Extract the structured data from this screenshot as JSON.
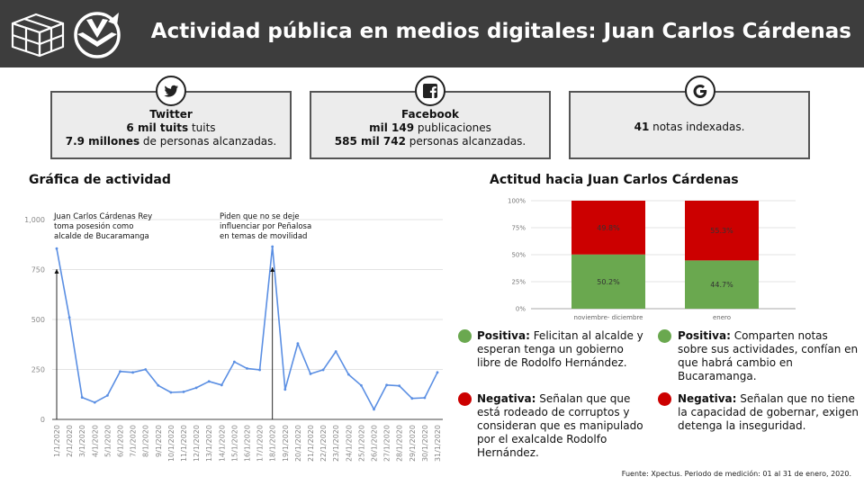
{
  "header": {
    "title": "Actividad pública en medios digitales: Juan Carlos Cárdenas"
  },
  "cards": {
    "twitter": {
      "icon": "twitter-icon",
      "name": "Twitter",
      "line1_bold": "6 mil tuits",
      "line1_rest": " tuits",
      "line2_bold": "7.9 millones",
      "line2_rest": " de personas alcanzadas."
    },
    "facebook": {
      "icon": "facebook-icon",
      "name": "Facebook",
      "line1_bold": "mil 149",
      "line1_rest": "  publicaciones",
      "line2_bold": "585 mil 742",
      "line2_rest": " personas alcanzadas."
    },
    "google": {
      "icon": "google-icon",
      "line1_bold": "41",
      "line1_rest": " notas indexadas."
    }
  },
  "activity": {
    "title": "Gráfica de actividad",
    "annotations": [
      {
        "x": "1/1/2020",
        "text": "Juan Carlos Cárdenas Rey toma posesión como alcalde de Bucaramanga",
        "lines": [
          "Juan Carlos Cárdenas Rey",
          "toma posesión como",
          "alcalde de Bucaramanga"
        ]
      },
      {
        "x": "18/1/2020",
        "text": "Piden que no se deje influenciar por Peñalosa en temas de movilidad",
        "lines": [
          "Piden que no se deje",
          "influenciar por Peñalosa",
          "en temas de movilidad"
        ]
      }
    ]
  },
  "attitude": {
    "title": "Actitud hacia Juan Carlos Cárdenas"
  },
  "legend": {
    "left": [
      {
        "color": "green",
        "label": "Positiva:",
        "text": "  Felicitan al alcalde y esperan tenga un gobierno libre de Rodolfo Hernández."
      },
      {
        "color": "red",
        "label": "Negativa:",
        "text": " Señalan que que está rodeado de corruptos y consideran que es manipulado por el exalcalde Rodolfo Hernández."
      }
    ],
    "right": [
      {
        "color": "green",
        "label": "Positiva:",
        "text": " Comparten notas sobre sus actividades, confían en que habrá cambio en Bucaramanga."
      },
      {
        "color": "red",
        "label": "Negativa:",
        "text": " Señalan que no tiene la capacidad de gobernar, exigen detenga la inseguridad."
      }
    ]
  },
  "source": "Fuente: Xpectus. Periodo de medición:  01 al 31 de enero, 2020.",
  "chart_data": [
    {
      "type": "line",
      "title": "",
      "x": [
        "1/1/2020",
        "2/1/2020",
        "3/1/2020",
        "4/1/2020",
        "5/1/2020",
        "6/1/2020",
        "7/1/2020",
        "8/1/2020",
        "9/1/2020",
        "10/1/2020",
        "11/1/2020",
        "12/1/2020",
        "13/1/2020",
        "14/1/2020",
        "15/1/2020",
        "16/1/2020",
        "17/1/2020",
        "18/1/2020",
        "19/1/2020",
        "20/1/2020",
        "21/1/2020",
        "22/1/2020",
        "23/1/2020",
        "24/1/2020",
        "25/1/2020",
        "26/1/2020",
        "27/1/2020",
        "28/1/2020",
        "29/1/2020",
        "30/1/2020",
        "31/1/2020"
      ],
      "series": [
        {
          "values": [
            855,
            510,
            110,
            85,
            120,
            240,
            235,
            250,
            170,
            135,
            138,
            158,
            190,
            172,
            288,
            255,
            248,
            865,
            150,
            380,
            228,
            248,
            340,
            225,
            170,
            50,
            172,
            168,
            105,
            108,
            235
          ]
        }
      ],
      "ylim": [
        0,
        1000
      ],
      "yticks": [
        0,
        250,
        500,
        750,
        1000
      ],
      "ytick_labels": [
        "0",
        "250",
        "500",
        "750",
        "1,000"
      ],
      "color": "#5b8fe3",
      "grid": true
    },
    {
      "type": "bar",
      "stacked": true,
      "categories": [
        "noviembre- diciembre",
        "enero"
      ],
      "series": [
        {
          "values": [
            50.2,
            44.7
          ],
          "color": "#6aa84f"
        },
        {
          "values": [
            49.8,
            55.3
          ],
          "color": "#cc0000"
        }
      ],
      "value_labels": [
        [
          "50.2%",
          "44.7%"
        ],
        [
          "49.8%",
          "55.3%"
        ]
      ],
      "ylim": [
        0,
        100
      ],
      "yticks": [
        0,
        25,
        50,
        75,
        100
      ],
      "ytick_labels": [
        "0%",
        "25%",
        "50%",
        "75%",
        "100%"
      ],
      "grid": true
    }
  ]
}
